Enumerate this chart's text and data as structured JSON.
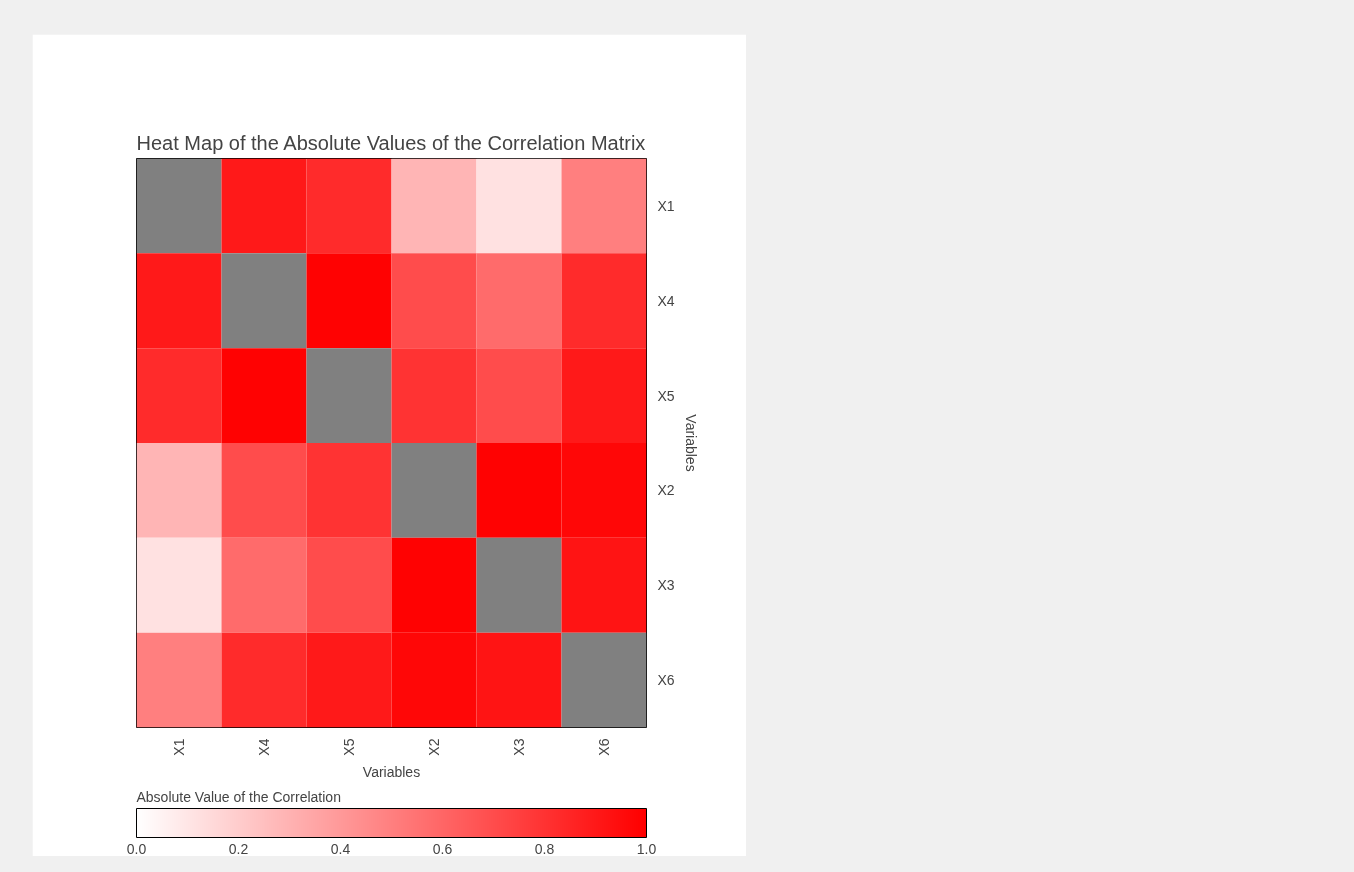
{
  "chart_data": {
    "type": "heatmap",
    "title": "Heat Map of the Absolute Values of the Correlation Matrix",
    "xlabel": "Variables",
    "ylabel": "Variables",
    "clabel": "Absolute Value of the Correlation",
    "categories": [
      "X1",
      "X4",
      "X5",
      "X2",
      "X3",
      "X6"
    ],
    "y_categories": [
      "X1",
      "X4",
      "X5",
      "X2",
      "X3",
      "X6"
    ],
    "cells": [
      [
        null,
        0.9,
        0.83,
        0.29,
        0.12,
        0.5
      ],
      [
        0.9,
        null,
        0.99,
        0.7,
        0.58,
        0.83
      ],
      [
        0.83,
        0.99,
        null,
        0.8,
        0.7,
        0.9
      ],
      [
        0.29,
        0.7,
        0.8,
        null,
        0.99,
        0.97
      ],
      [
        0.12,
        0.58,
        0.7,
        0.99,
        null,
        0.92
      ],
      [
        0.5,
        0.83,
        0.9,
        0.97,
        0.92,
        null
      ]
    ],
    "clim": [
      0,
      1
    ],
    "cticks": [
      {
        "value": 0,
        "label": "0.0"
      },
      {
        "value": 0.2,
        "label": "0.2"
      },
      {
        "value": 0.4,
        "label": "0.4"
      },
      {
        "value": 0.6,
        "label": "0.6"
      },
      {
        "value": 0.8,
        "label": "0.8"
      },
      {
        "value": 1,
        "label": "1.0"
      }
    ],
    "grid": false
  }
}
